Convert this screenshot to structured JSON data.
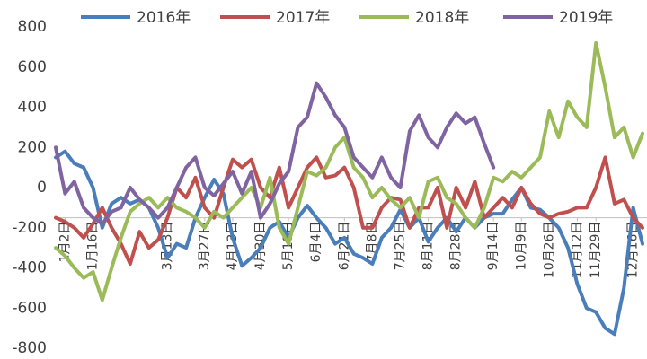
{
  "chart_data": {
    "type": "line",
    "categories": [
      null,
      "1月2日",
      null,
      null,
      "1月16日",
      null,
      null,
      null,
      null,
      null,
      null,
      null,
      "3月13日",
      null,
      null,
      null,
      "3月27日",
      null,
      null,
      "4月13日",
      null,
      null,
      "4月30日",
      null,
      null,
      "5月18日",
      null,
      null,
      "6月4日",
      null,
      null,
      "6月21日",
      null,
      null,
      "7月8日",
      null,
      null,
      "7月25日",
      null,
      null,
      "8月11日",
      null,
      null,
      "8月28日",
      null,
      null,
      null,
      "9月14日",
      null,
      null,
      "10月9日",
      null,
      null,
      "10月26日",
      null,
      null,
      "11月12日",
      null,
      "11月29日",
      null,
      null,
      null,
      "12月16日",
      null
    ],
    "series": [
      {
        "name": "2016年",
        "color": "#4a7ebb",
        "values": [
          150,
          180,
          120,
          100,
          0,
          -200,
          -80,
          -50,
          -80,
          -60,
          -100,
          -200,
          -350,
          -280,
          -300,
          -150,
          -50,
          40,
          -30,
          -250,
          -390,
          -350,
          -300,
          -200,
          -170,
          -250,
          -150,
          -90,
          -150,
          -200,
          -280,
          -250,
          -330,
          -350,
          -380,
          -250,
          -200,
          -110,
          -200,
          -150,
          -270,
          -200,
          -150,
          -220,
          -150,
          -200,
          -150,
          -130,
          -130,
          -60,
          0,
          -100,
          -110,
          -150,
          -200,
          -300,
          -480,
          -600,
          -620,
          -700,
          -730,
          -500,
          -100,
          -280
        ]
      },
      {
        "name": "2017年",
        "color": "#c0504d",
        "values": [
          -150,
          -170,
          -200,
          -250,
          -180,
          -100,
          -200,
          -280,
          -380,
          -220,
          -300,
          -260,
          -150,
          0,
          -50,
          50,
          -100,
          -150,
          0,
          140,
          100,
          140,
          0,
          -50,
          100,
          -100,
          0,
          100,
          150,
          50,
          60,
          100,
          0,
          -200,
          -200,
          -100,
          -50,
          -60,
          -200,
          -100,
          -100,
          0,
          -200,
          0,
          -100,
          30,
          -150,
          -100,
          -50,
          -100,
          0,
          -80,
          -130,
          -150,
          -130,
          -120,
          -100,
          -100,
          0,
          150,
          -80,
          -60,
          -150,
          -200
        ]
      },
      {
        "name": "2018年",
        "color": "#9bbb59",
        "values": [
          -300,
          -340,
          -400,
          -450,
          -420,
          -560,
          -400,
          -250,
          -120,
          -80,
          -50,
          -100,
          -50,
          -100,
          -120,
          -150,
          -200,
          -120,
          -150,
          -100,
          -50,
          0,
          -100,
          50,
          -200,
          -280,
          -100,
          80,
          60,
          100,
          200,
          250,
          100,
          50,
          -50,
          0,
          -60,
          -100,
          -50,
          -150,
          30,
          50,
          -50,
          -80,
          -150,
          -200,
          -100,
          50,
          30,
          80,
          50,
          100,
          150,
          380,
          250,
          430,
          350,
          300,
          720,
          500,
          250,
          300,
          150,
          270
        ]
      },
      {
        "name": "2019年",
        "color": "#8064a2",
        "values": [
          200,
          -30,
          30,
          -100,
          -150,
          -180,
          -120,
          -100,
          0,
          -60,
          -100,
          -150,
          -100,
          0,
          100,
          150,
          0,
          -40,
          20,
          80,
          -30,
          80,
          -150,
          -80,
          20,
          80,
          300,
          350,
          520,
          450,
          360,
          300,
          150,
          100,
          50,
          150,
          50,
          0,
          280,
          360,
          250,
          200,
          300,
          370,
          320,
          350,
          220,
          100,
          null,
          null,
          null,
          null,
          null,
          null,
          null,
          null,
          null,
          null,
          null,
          null,
          null,
          null,
          null,
          null
        ]
      }
    ],
    "ylim": [
      -800,
      800
    ],
    "yticks": [
      -800,
      -600,
      -400,
      -200,
      0,
      200,
      400,
      600,
      800
    ],
    "x_axis_at": -150,
    "grid": false,
    "legend": "top"
  }
}
